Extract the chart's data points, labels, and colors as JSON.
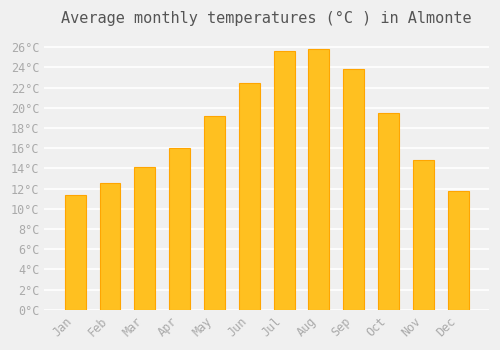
{
  "title": "Average monthly temperatures (°C ) in Almonte",
  "months": [
    "Jan",
    "Feb",
    "Mar",
    "Apr",
    "May",
    "Jun",
    "Jul",
    "Aug",
    "Sep",
    "Oct",
    "Nov",
    "Dec"
  ],
  "values": [
    11.4,
    12.5,
    14.1,
    16.0,
    19.2,
    22.4,
    25.6,
    25.8,
    23.8,
    19.5,
    14.8,
    11.8
  ],
  "bar_color": "#FFC020",
  "bar_edge_color": "#FFA500",
  "background_color": "#F0F0F0",
  "plot_bg_color": "#F0F0F0",
  "grid_color": "#FFFFFF",
  "tick_label_color": "#AAAAAA",
  "title_color": "#555555",
  "ylim": [
    0,
    27
  ],
  "yticks": [
    0,
    2,
    4,
    6,
    8,
    10,
    12,
    14,
    16,
    18,
    20,
    22,
    24,
    26
  ],
  "ytick_labels": [
    "0°C",
    "2°C",
    "4°C",
    "6°C",
    "8°C",
    "10°C",
    "12°C",
    "14°C",
    "16°C",
    "18°C",
    "20°C",
    "22°C",
    "24°C",
    "26°C"
  ],
  "title_fontsize": 11,
  "tick_fontsize": 8.5,
  "font_family": "monospace"
}
